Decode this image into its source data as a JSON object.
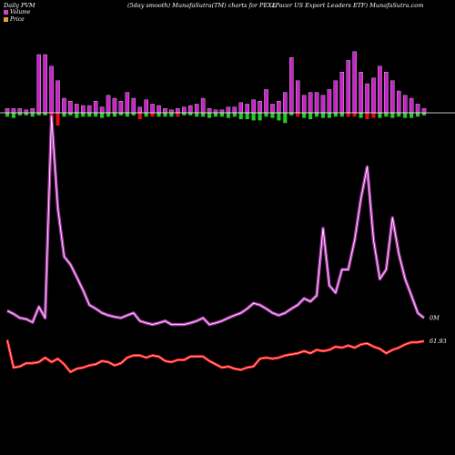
{
  "header": {
    "left": "Daily PVM",
    "center": "(5day smooth) MunafaSutra(TM) charts for PEXL",
    "right": "(Pacer US Export Leaders ETF) MunafaSutra.com"
  },
  "legend": [
    {
      "label": "Volume",
      "color": "#cc44cc"
    },
    {
      "label": "Price",
      "color": "#e8a040"
    }
  ],
  "colors": {
    "background": "#000000",
    "volume_line": "#cc44cc",
    "price_line": "#ff2020",
    "bar_up": "#cc22cc",
    "bar_green": "#22cc22",
    "bar_red": "#dd1111",
    "baseline": "#ffffff"
  },
  "end_labels": {
    "volume": "0M",
    "price": "61.93"
  },
  "chart_data": {
    "type": "line",
    "title": "",
    "series": [
      {
        "name": "Volume",
        "values": [
          0.35,
          0.28,
          0.2,
          0.18,
          0.13,
          0.45,
          0.2,
          20,
          7,
          2.8,
          2.3,
          1.6,
          1.0,
          0.5,
          0.4,
          0.3,
          0.25,
          0.22,
          0.2,
          0.25,
          0.3,
          0.15,
          0.12,
          0.1,
          0.12,
          0.15,
          0.1,
          0.1,
          0.1,
          0.12,
          0.15,
          0.2,
          0.1,
          0.12,
          0.15,
          0.2,
          0.25,
          0.3,
          0.4,
          0.55,
          0.5,
          0.4,
          0.3,
          0.25,
          0.3,
          0.4,
          0.5,
          0.7,
          0.6,
          0.8,
          5,
          1.2,
          0.9,
          2.0,
          2.0,
          4,
          8,
          12,
          4,
          1.5,
          2,
          6,
          3,
          1.5,
          0.8,
          0.3,
          0.2
        ]
      },
      {
        "name": "Price",
        "values": [
          62.5,
          60.0,
          60.1,
          60.4,
          60.4,
          60.5,
          60.9,
          60.5,
          60.8,
          60.3,
          59.6,
          59.9,
          60.0,
          60.2,
          60.3,
          60.6,
          60.5,
          60.2,
          60.4,
          60.9,
          61.1,
          61.1,
          60.9,
          61.1,
          61.0,
          60.6,
          60.5,
          60.7,
          60.7,
          61.0,
          61.0,
          61.0,
          60.6,
          60.3,
          60.0,
          60.1,
          59.9,
          59.8,
          60.0,
          60.1,
          60.8,
          60.9,
          60.8,
          60.9,
          61.1,
          61.2,
          61.3,
          61.5,
          61.3,
          61.6,
          61.5,
          61.6,
          61.9,
          61.8,
          62.0,
          61.8,
          62.1,
          62.2,
          61.9,
          61.7,
          61.3,
          61.6,
          61.8,
          62.1,
          62.3,
          62.3,
          62.4
        ]
      }
    ],
    "volume_bars": {
      "up": [
        3,
        3,
        3,
        2,
        3,
        40,
        40,
        32,
        22,
        10,
        8,
        6,
        5,
        5,
        8,
        4,
        12,
        10,
        8,
        14,
        10,
        4,
        9,
        6,
        5,
        3,
        2,
        3,
        4,
        5,
        6,
        10,
        3,
        2,
        2,
        4,
        4,
        7,
        6,
        9,
        8,
        16,
        6,
        8,
        14,
        38,
        22,
        12,
        14,
        14,
        12,
        16,
        22,
        28,
        36,
        42,
        28,
        20,
        24,
        32,
        28,
        22,
        15,
        12,
        10,
        6,
        3
      ],
      "down": [
        3,
        4,
        2,
        2,
        3,
        2,
        2,
        6,
        10,
        3,
        2,
        4,
        3,
        3,
        3,
        4,
        3,
        3,
        2,
        3,
        2,
        5,
        3,
        3,
        3,
        3,
        3,
        3,
        2,
        2,
        3,
        3,
        4,
        3,
        3,
        4,
        3,
        5,
        5,
        6,
        6,
        3,
        4,
        6,
        8,
        2,
        3,
        4,
        5,
        3,
        4,
        4,
        3,
        3,
        3,
        3,
        4,
        5,
        4,
        4,
        3,
        4,
        3,
        4,
        4,
        3,
        2
      ],
      "down_color": [
        "g",
        "g",
        "g",
        "g",
        "g",
        "g",
        "g",
        "r",
        "r",
        "g",
        "g",
        "g",
        "g",
        "g",
        "g",
        "g",
        "g",
        "g",
        "g",
        "g",
        "g",
        "r",
        "g",
        "r",
        "g",
        "g",
        "g",
        "r",
        "g",
        "g",
        "g",
        "g",
        "g",
        "g",
        "g",
        "g",
        "g",
        "g",
        "g",
        "g",
        "g",
        "g",
        "g",
        "g",
        "g",
        "g",
        "r",
        "g",
        "g",
        "g",
        "g",
        "g",
        "g",
        "g",
        "r",
        "r",
        "g",
        "r",
        "r",
        "g",
        "g",
        "g",
        "g",
        "g",
        "g",
        "g",
        "g"
      ]
    },
    "xlabel": "",
    "ylabel": "",
    "grid": false,
    "legend_position": "top-left"
  }
}
